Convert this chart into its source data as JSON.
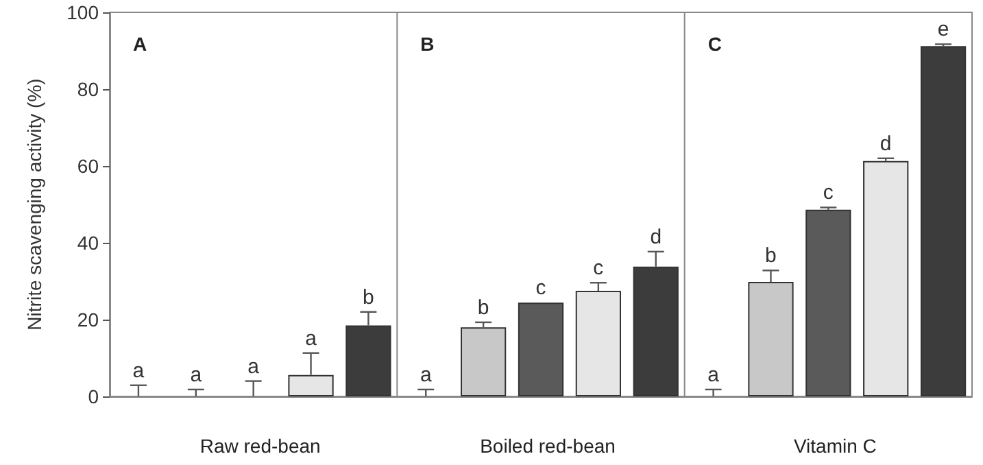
{
  "chart_data": {
    "type": "bar",
    "ylabel": "Nitrite scavenging activity (%)",
    "annotations": [
      "A",
      "Raw red-bean",
      "B",
      "Boiled red-bean",
      "C",
      "Vitamin C"
    ],
    "categories": [
      null,
      null,
      null,
      null,
      null,
      null,
      null,
      null,
      null,
      null,
      null,
      null,
      null,
      null,
      null
    ],
    "values": [
      0,
      0,
      0,
      5.6,
      18.5,
      0,
      18,
      24.4,
      27.5,
      33.8,
      0,
      29.8,
      48.6,
      61.3,
      91.2
    ],
    "colors": [
      "#c8c8c8",
      "#5a5a5a",
      "#e6e6e6",
      "#e6e6e6",
      "#3c3c3c",
      "#c8c8c8",
      "#c8c8c8",
      "#5a5a5a",
      "#e6e6e6",
      "#3c3c3c",
      "#c8c8c8",
      "#c8c8c8",
      "#5a5a5a",
      "#e6e6e6",
      "#3c3c3c"
    ],
    "errors": [
      [
        0,
        2.9
      ],
      [
        0,
        1.8
      ],
      [
        0,
        4
      ],
      [
        5.6,
        11.3
      ],
      [
        18.5,
        22
      ],
      [
        0,
        1.8
      ],
      [
        18,
        19.3
      ],
      null,
      [
        27.5,
        29.6
      ],
      [
        33.8,
        37.7
      ],
      [
        0,
        1.8
      ],
      [
        29.8,
        32.8
      ],
      [
        48.6,
        49.2
      ],
      [
        61.3,
        62
      ],
      [
        91.2,
        91.7
      ]
    ],
    "value_labels": [
      "a",
      "a",
      "a",
      "a",
      "b",
      "a",
      "b",
      "c",
      "c",
      "d",
      "a",
      "b",
      "c",
      "d",
      "e"
    ],
    "ylim": [
      0,
      100
    ],
    "yticks": [
      0,
      20,
      40,
      60,
      80,
      100
    ]
  }
}
